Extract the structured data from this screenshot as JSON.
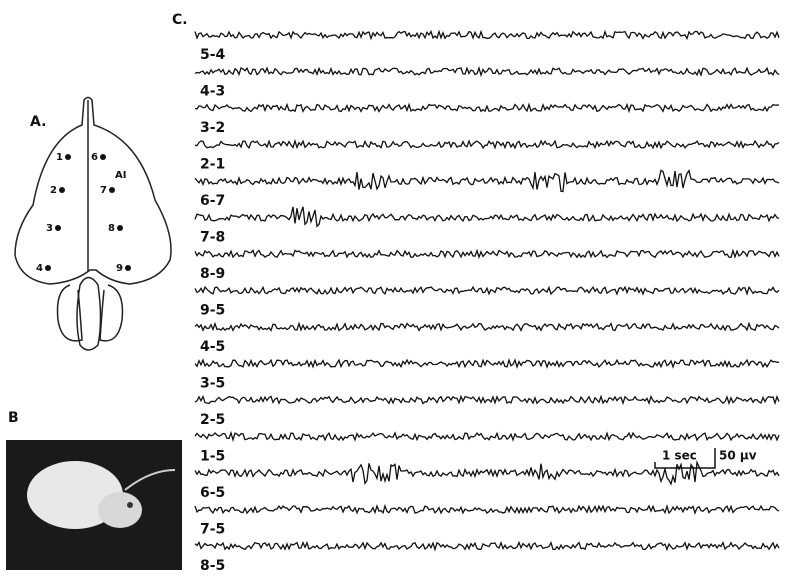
{
  "panels": {
    "a": "A.",
    "b": "B",
    "c": "C."
  },
  "electrodes": [
    "1",
    "2",
    "3",
    "4",
    "6",
    "7",
    "8",
    "9"
  ],
  "area_label": "AI",
  "traces": [
    "5-4",
    "4-3",
    "3-2",
    "2-1",
    "6-7",
    "7-8",
    "8-9",
    "9-5",
    "4-5",
    "3-5",
    "2-5",
    "1-5",
    "6-5",
    "7-5",
    "8-5"
  ],
  "scale": {
    "time": "1 sec",
    "amplitude": "50 μv"
  }
}
